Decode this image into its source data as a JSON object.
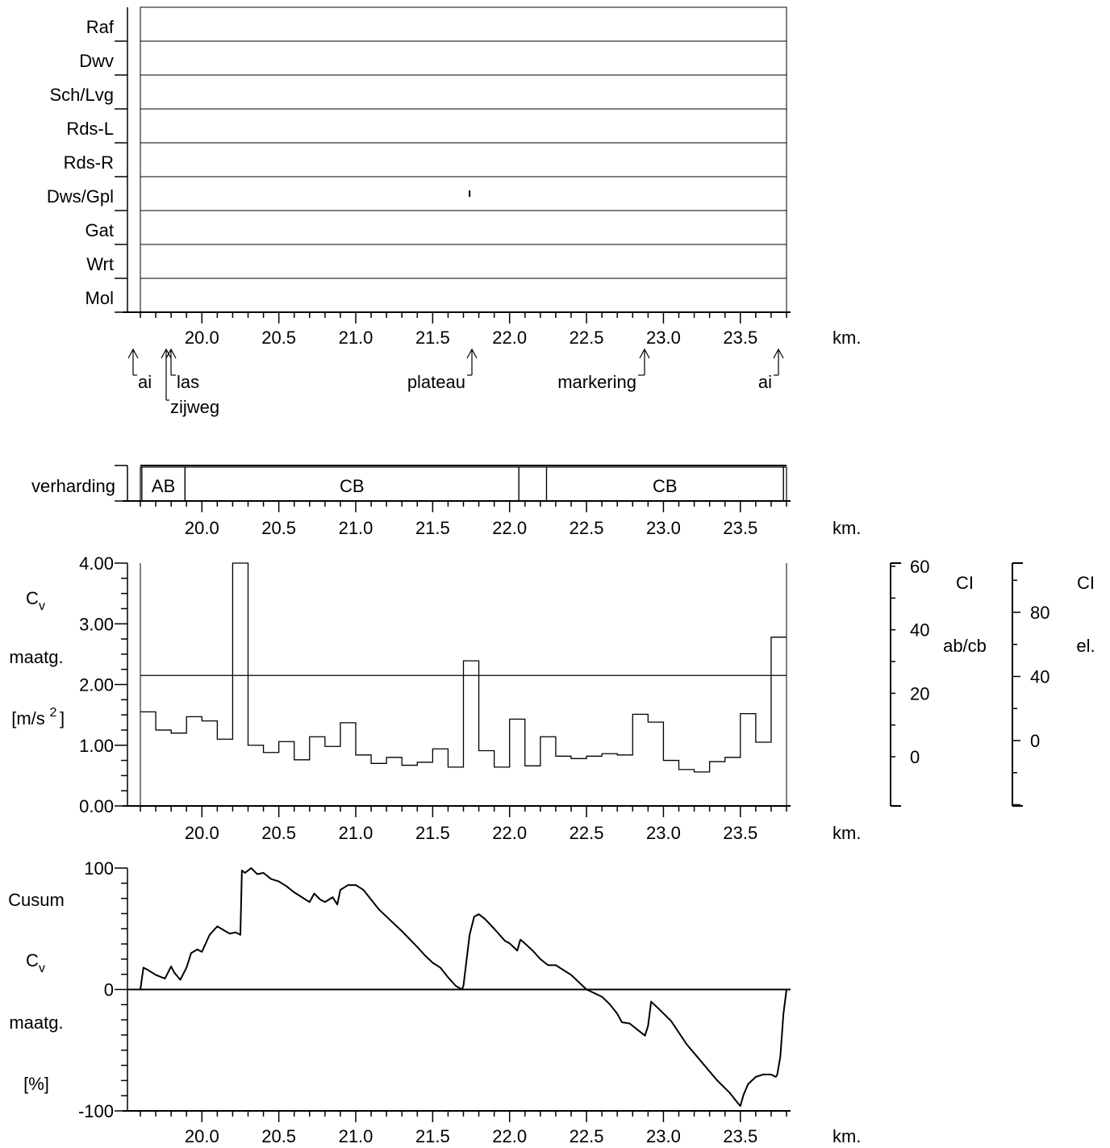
{
  "chart_data": [
    {
      "type": "table",
      "rows": [
        "Raf",
        "Dwv",
        "Sch/Lvg",
        "Rds-L",
        "Rds-R",
        "Dws/Gpl",
        "Gat",
        "Wrt",
        "Mol"
      ],
      "marks": [
        {
          "row": "Dws/Gpl",
          "x": 21.74
        }
      ],
      "xlim": [
        19.6,
        23.8
      ],
      "xticks": [
        "20.0",
        "20.5",
        "21.0",
        "21.5",
        "22.0",
        "22.5",
        "23.0",
        "23.5"
      ],
      "xunit": "km."
    },
    {
      "type": "table",
      "events": [
        {
          "label": "ai",
          "x": 19.55
        },
        {
          "label": "las",
          "x": 19.78
        },
        {
          "label": "zijweg",
          "x": 19.74
        },
        {
          "label": "plateau",
          "x": 21.74
        },
        {
          "label": "markering",
          "x": 22.9
        },
        {
          "label": "ai",
          "x": 23.78
        }
      ]
    },
    {
      "type": "table",
      "label": "verharding",
      "segments": [
        {
          "label": "",
          "start": 19.6,
          "end": 19.61
        },
        {
          "label": "AB",
          "start": 19.61,
          "end": 19.89
        },
        {
          "label": "CB",
          "start": 19.89,
          "end": 22.06
        },
        {
          "label": "",
          "start": 22.06,
          "end": 22.24
        },
        {
          "label": "CB",
          "start": 22.24,
          "end": 23.78
        },
        {
          "label": "",
          "start": 23.78,
          "end": 23.8
        }
      ],
      "xticks": [
        "20.0",
        "20.5",
        "21.0",
        "21.5",
        "22.0",
        "22.5",
        "23.0",
        "23.5"
      ],
      "xunit": "km."
    },
    {
      "type": "line",
      "ylabel": [
        "C",
        "v",
        "maatg.",
        "[m/s",
        "2",
        "]"
      ],
      "ylim": [
        0,
        4
      ],
      "yticks": [
        "0.00",
        "1.00",
        "2.00",
        "3.00",
        "4.00"
      ],
      "xlim": [
        19.6,
        23.8
      ],
      "xticks": [
        "20.0",
        "20.5",
        "21.0",
        "21.5",
        "22.0",
        "22.5",
        "23.0",
        "23.5"
      ],
      "xunit": "km.",
      "reference": 2.15,
      "step_edges": [
        19.6,
        19.7,
        19.8,
        19.9,
        20.0,
        20.1,
        20.2,
        20.3,
        20.4,
        20.5,
        20.6,
        20.7,
        20.8,
        20.9,
        21.0,
        21.1,
        21.2,
        21.3,
        21.4,
        21.5,
        21.6,
        21.7,
        21.8,
        21.9,
        22.0,
        22.1,
        22.2,
        22.3,
        22.4,
        22.5,
        22.6,
        22.7,
        22.8,
        22.9,
        23.0,
        23.1,
        23.2,
        23.3,
        23.4,
        23.5,
        23.6,
        23.7,
        23.8
      ],
      "step_values": [
        1.55,
        1.25,
        1.2,
        1.47,
        1.4,
        1.1,
        4.0,
        1.0,
        0.88,
        1.06,
        0.76,
        1.14,
        0.98,
        1.37,
        0.84,
        0.7,
        0.8,
        0.67,
        0.72,
        0.94,
        0.64,
        2.39,
        0.91,
        0.64,
        1.43,
        0.66,
        1.14,
        0.82,
        0.78,
        0.82,
        0.86,
        0.84,
        1.51,
        1.38,
        0.75,
        0.6,
        0.56,
        0.73,
        0.8,
        1.52,
        1.05,
        2.78
      ],
      "axis2": {
        "label": [
          "CI",
          "ab/cb"
        ],
        "ticks": [
          "60",
          "40",
          "20",
          "0"
        ]
      },
      "axis3": {
        "label": [
          "CI",
          "el."
        ],
        "ticks": [
          "80",
          "40",
          "0"
        ]
      }
    },
    {
      "type": "line",
      "ylabel": [
        "Cusum",
        "C",
        "v",
        "maatg.",
        "[%]"
      ],
      "ylim": [
        -100,
        100
      ],
      "yticks": [
        "100",
        "0",
        "-100"
      ],
      "xlim": [
        19.6,
        23.8
      ],
      "xticks": [
        "20.0",
        "20.5",
        "21.0",
        "21.5",
        "22.0",
        "22.5",
        "23.0",
        "23.5"
      ],
      "xunit": "km.",
      "x": [
        19.6,
        19.62,
        19.65,
        19.7,
        19.76,
        19.8,
        19.82,
        19.86,
        19.9,
        19.93,
        19.97,
        20.0,
        20.05,
        20.1,
        20.14,
        20.18,
        20.22,
        20.25,
        20.26,
        20.28,
        20.32,
        20.36,
        20.4,
        20.45,
        20.5,
        20.55,
        20.6,
        20.65,
        20.7,
        20.73,
        20.77,
        20.8,
        20.85,
        20.88,
        20.9,
        20.95,
        21.0,
        21.05,
        21.1,
        21.15,
        21.2,
        21.3,
        21.4,
        21.45,
        21.5,
        21.55,
        21.6,
        21.65,
        21.69,
        21.7,
        21.74,
        21.77,
        21.8,
        21.84,
        21.9,
        21.97,
        22.0,
        22.05,
        22.07,
        22.09,
        22.15,
        22.2,
        22.25,
        22.3,
        22.4,
        22.5,
        22.55,
        22.6,
        22.65,
        22.7,
        22.73,
        22.78,
        22.85,
        22.88,
        22.9,
        22.92,
        22.97,
        23.05,
        23.15,
        23.25,
        23.35,
        23.43,
        23.48,
        23.5,
        23.52,
        23.55,
        23.6,
        23.65,
        23.7,
        23.73,
        23.74,
        23.76,
        23.78,
        23.8
      ],
      "y": [
        0,
        18,
        16,
        12,
        9,
        19,
        14,
        8,
        18,
        30,
        33,
        31,
        45,
        52,
        49,
        46,
        47,
        45,
        98,
        96,
        100,
        95,
        96,
        91,
        89,
        85,
        80,
        76,
        72,
        79,
        74,
        72,
        76,
        70,
        82,
        86,
        86,
        82,
        74,
        66,
        60,
        48,
        35,
        28,
        22,
        18,
        10,
        3,
        0,
        3,
        45,
        60,
        62,
        58,
        50,
        40,
        38,
        32,
        41,
        39,
        32,
        25,
        20,
        20,
        12,
        0,
        -3,
        -6,
        -12,
        -20,
        -27,
        -28,
        -35,
        -38,
        -30,
        -10,
        -16,
        -26,
        -45,
        -60,
        -75,
        -85,
        -93,
        -96,
        -87,
        -78,
        -72,
        -70,
        -70,
        -72,
        -70,
        -55,
        -20,
        0
      ]
    }
  ]
}
